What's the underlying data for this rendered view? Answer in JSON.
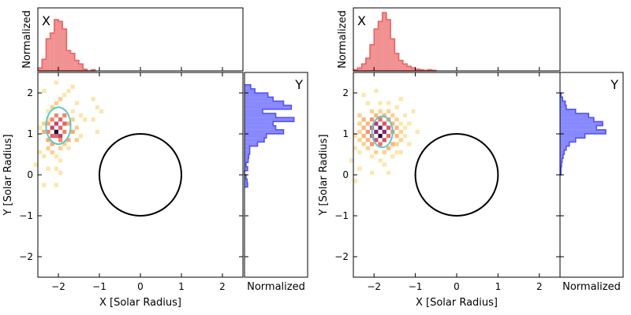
{
  "chart_data": [
    {
      "type": "heatmap",
      "panel": "left",
      "xlabel": "X [Solar Radius]",
      "ylabel": "Y [Solar Radius]",
      "xlim": [
        -2.5,
        2.5
      ],
      "ylim": [
        -2.5,
        2.5
      ],
      "xticks": [
        -2,
        -1,
        0,
        1,
        2
      ],
      "yticks": [
        -2,
        -1,
        0,
        1,
        2
      ],
      "xtick_labels": [
        "−2",
        "−1",
        "0",
        "1",
        "2"
      ],
      "ytick_labels": [
        "−2",
        "−1",
        "0",
        "1",
        "2"
      ],
      "sun_circle": {
        "cx": 0,
        "cy": 0,
        "r": 1
      },
      "ellipse": {
        "cx": -2.0,
        "cy": 1.2,
        "rx": 0.3,
        "ry": 0.45,
        "color": "#5cc8c8"
      },
      "cells": [
        [
          -2.45,
          0.55,
          1
        ],
        [
          -2.35,
          0.45,
          1
        ],
        [
          -2.25,
          1.35,
          1
        ],
        [
          -2.25,
          1.55,
          1
        ],
        [
          -2.15,
          1.65,
          2
        ],
        [
          -2.05,
          1.75,
          2
        ],
        [
          -1.95,
          1.85,
          2
        ],
        [
          -1.85,
          1.95,
          1
        ],
        [
          -1.75,
          2.05,
          1
        ],
        [
          -1.65,
          2.15,
          1
        ],
        [
          -2.35,
          2.05,
          1
        ],
        [
          -2.05,
          2.25,
          1
        ],
        [
          -1.55,
          1.75,
          1
        ],
        [
          -1.45,
          1.45,
          1
        ],
        [
          -1.35,
          1.35,
          1
        ],
        [
          -1.15,
          1.35,
          1
        ],
        [
          -1.05,
          1.65,
          1
        ],
        [
          -1.15,
          1.85,
          1
        ],
        [
          -2.55,
          0.25,
          1
        ],
        [
          -2.15,
          0.55,
          2
        ],
        [
          -2.05,
          0.45,
          1
        ],
        [
          -1.95,
          0.35,
          1
        ],
        [
          -1.75,
          0.65,
          1
        ],
        [
          -1.55,
          0.85,
          2
        ],
        [
          -2.25,
          0.15,
          1
        ],
        [
          -2.05,
          0.15,
          1
        ],
        [
          -2.35,
          -0.25,
          1
        ],
        [
          -2.05,
          -0.25,
          1
        ],
        [
          -1.95,
          0.05,
          1
        ],
        [
          -1.05,
          1.05,
          1
        ],
        [
          -0.95,
          1.55,
          1
        ],
        [
          -2.35,
          1.05,
          3
        ],
        [
          -2.25,
          0.85,
          3
        ],
        [
          -2.15,
          0.95,
          5
        ],
        [
          -2.15,
          1.15,
          6
        ],
        [
          -2.05,
          1.05,
          6
        ],
        [
          -2.05,
          0.95,
          5
        ],
        [
          -1.95,
          1.15,
          5
        ],
        [
          -1.95,
          0.85,
          4
        ],
        [
          -1.85,
          1.05,
          4
        ],
        [
          -1.75,
          1.25,
          3
        ],
        [
          -1.65,
          1.05,
          3
        ],
        [
          -1.75,
          0.85,
          3
        ],
        [
          -2.25,
          1.25,
          3
        ],
        [
          -2.15,
          1.35,
          4
        ],
        [
          -2.05,
          1.45,
          4
        ],
        [
          -1.95,
          1.35,
          5
        ],
        [
          -1.85,
          1.45,
          4
        ],
        [
          -2.05,
          1.25,
          6
        ],
        [
          -1.85,
          1.25,
          5
        ],
        [
          -2.25,
          1.05,
          4
        ],
        [
          -2.05,
          1.05,
          9
        ],
        [
          -1.95,
          0.95,
          6
        ],
        [
          -2.15,
          0.75,
          3
        ],
        [
          -1.85,
          0.75,
          2
        ],
        [
          -1.65,
          1.35,
          2
        ],
        [
          -1.65,
          1.55,
          1
        ],
        [
          -2.35,
          1.25,
          2
        ],
        [
          -2.45,
          1.15,
          1
        ],
        [
          -1.55,
          1.15,
          2
        ],
        [
          -1.45,
          0.95,
          1
        ],
        [
          -2.25,
          0.65,
          2
        ],
        [
          -1.95,
          0.65,
          2
        ]
      ],
      "cell_size": 0.1,
      "colormap": "magma_r"
    },
    {
      "type": "bar",
      "panel": "left-top-histogram",
      "orientation": "vertical",
      "label": "X",
      "ylabel": "Normalized",
      "xlim": [
        -2.5,
        2.5
      ],
      "bin_width": 0.1,
      "bins_x": [
        -2.5,
        -2.4,
        -2.3,
        -2.2,
        -2.1,
        -2.0,
        -1.9,
        -1.8,
        -1.7,
        -1.6,
        -1.5,
        -1.4,
        -1.3,
        -1.2
      ],
      "values": [
        0.05,
        0.2,
        0.55,
        0.65,
        0.88,
        0.85,
        0.72,
        0.35,
        0.3,
        0.18,
        0.12,
        0.03,
        0.0,
        0.02
      ],
      "color": "#e8484a"
    },
    {
      "type": "bar",
      "panel": "left-right-histogram",
      "orientation": "horizontal",
      "label": "Y",
      "xlabel": "Normalized",
      "ylim": [
        -2.5,
        2.5
      ],
      "bin_width": 0.1,
      "bins_y": [
        2.1,
        2.0,
        1.9,
        1.8,
        1.7,
        1.6,
        1.5,
        1.4,
        1.3,
        1.2,
        1.1,
        1.0,
        0.9,
        0.8,
        0.7,
        0.6,
        0.5,
        0.4,
        0.3,
        0.2,
        0.1,
        0.0,
        -0.1,
        -0.2,
        -0.3
      ],
      "values": [
        0.12,
        0.2,
        0.45,
        0.55,
        0.75,
        0.9,
        0.35,
        0.6,
        0.95,
        0.55,
        0.6,
        0.75,
        0.42,
        0.38,
        0.25,
        0.1,
        0.1,
        0.08,
        0.07,
        0.03,
        0.06,
        0.0,
        0.03,
        0.05,
        0.06
      ],
      "color": "#3b3bff"
    },
    {
      "type": "heatmap",
      "panel": "right",
      "xlabel": "X [Solar Radius]",
      "ylabel": "Y [Solar Radius]",
      "xlim": [
        -2.5,
        2.5
      ],
      "ylim": [
        -2.5,
        2.5
      ],
      "xticks": [
        -2,
        -1,
        0,
        1,
        2
      ],
      "yticks": [
        -2,
        -1,
        0,
        1,
        2
      ],
      "xtick_labels": [
        "−2",
        "−1",
        "0",
        "1",
        "2"
      ],
      "ytick_labels": [
        "−2",
        "−1",
        "0",
        "1",
        "2"
      ],
      "sun_circle": {
        "cx": 0,
        "cy": 0,
        "r": 1
      },
      "ellipse": {
        "cx": -1.8,
        "cy": 1.05,
        "rx": 0.25,
        "ry": 0.38,
        "color": "#5cc8c8"
      },
      "cells": [
        [
          -2.15,
          1.05,
          4
        ],
        [
          -2.05,
          1.15,
          6
        ],
        [
          -2.05,
          0.95,
          6
        ],
        [
          -1.95,
          1.05,
          8
        ],
        [
          -1.95,
          1.25,
          7
        ],
        [
          -1.85,
          1.15,
          9
        ],
        [
          -1.85,
          0.95,
          10
        ],
        [
          -1.75,
          1.05,
          8
        ],
        [
          -1.75,
          1.25,
          6
        ],
        [
          -1.65,
          1.15,
          6
        ],
        [
          -1.65,
          0.95,
          5
        ],
        [
          -1.75,
          0.85,
          6
        ],
        [
          -1.95,
          0.85,
          6
        ],
        [
          -1.85,
          0.75,
          5
        ],
        [
          -2.05,
          0.75,
          4
        ],
        [
          -1.85,
          1.35,
          5
        ],
        [
          -2.05,
          1.35,
          4
        ],
        [
          -1.65,
          1.35,
          4
        ],
        [
          -1.55,
          1.05,
          4
        ],
        [
          -1.55,
          1.25,
          3
        ],
        [
          -2.25,
          1.15,
          3
        ],
        [
          -2.25,
          0.95,
          3
        ],
        [
          -2.15,
          1.25,
          3
        ],
        [
          -2.15,
          0.85,
          3
        ],
        [
          -1.45,
          0.95,
          3
        ],
        [
          -1.45,
          1.15,
          3
        ],
        [
          -1.55,
          0.75,
          3
        ],
        [
          -1.65,
          0.65,
          3
        ],
        [
          -1.95,
          1.45,
          3
        ],
        [
          -1.75,
          1.45,
          3
        ],
        [
          -2.35,
          1.05,
          2
        ],
        [
          -2.35,
          0.85,
          2
        ],
        [
          -2.25,
          0.75,
          2
        ],
        [
          -2.15,
          0.65,
          2
        ],
        [
          -1.95,
          0.55,
          2
        ],
        [
          -1.75,
          0.55,
          2
        ],
        [
          -1.45,
          1.35,
          2
        ],
        [
          -1.35,
          1.05,
          2
        ],
        [
          -1.35,
          0.85,
          2
        ],
        [
          -1.45,
          0.75,
          2
        ],
        [
          -1.85,
          1.55,
          2
        ],
        [
          -2.05,
          1.55,
          2
        ],
        [
          -1.65,
          1.55,
          2
        ],
        [
          -2.35,
          1.25,
          2
        ],
        [
          -1.35,
          1.25,
          1
        ],
        [
          -1.25,
          0.95,
          1
        ],
        [
          -1.25,
          1.15,
          1
        ],
        [
          -2.45,
          0.95,
          1
        ],
        [
          -2.45,
          0.65,
          1
        ],
        [
          -2.35,
          0.55,
          1
        ],
        [
          -2.05,
          0.45,
          1
        ],
        [
          -1.85,
          0.35,
          1
        ],
        [
          -1.55,
          0.45,
          1
        ],
        [
          -1.35,
          0.55,
          1
        ],
        [
          -1.85,
          1.75,
          1
        ],
        [
          -1.65,
          1.75,
          1
        ],
        [
          -2.15,
          1.75,
          1
        ],
        [
          -1.45,
          1.65,
          1
        ],
        [
          -1.25,
          1.45,
          1
        ],
        [
          -1.15,
          1.25,
          1
        ],
        [
          -2.55,
          0.35,
          1
        ],
        [
          -2.35,
          0.15,
          1
        ],
        [
          -2.05,
          0.05,
          1
        ],
        [
          -1.75,
          0.25,
          1
        ],
        [
          -1.65,
          0.05,
          1
        ],
        [
          -1.15,
          0.75,
          1
        ],
        [
          -0.95,
          1.05,
          1
        ],
        [
          -1.05,
          1.55,
          1
        ],
        [
          -1.35,
          1.85,
          1
        ],
        [
          -2.45,
          -0.15,
          1
        ],
        [
          -2.25,
          1.95,
          1
        ],
        [
          -1.95,
          2.05,
          1
        ],
        [
          -2.35,
          1.45,
          2
        ],
        [
          -2.25,
          1.35,
          3
        ],
        [
          -1.55,
          1.45,
          2
        ],
        [
          -1.45,
          0.55,
          1
        ]
      ],
      "cell_size": 0.1,
      "colormap": "magma_r"
    },
    {
      "type": "bar",
      "panel": "right-top-histogram",
      "orientation": "vertical",
      "label": "X",
      "ylabel": "Normalized",
      "xlim": [
        -2.5,
        2.5
      ],
      "bin_width": 0.1,
      "bins_x": [
        -2.5,
        -2.4,
        -2.3,
        -2.2,
        -2.1,
        -2.0,
        -1.9,
        -1.8,
        -1.7,
        -1.6,
        -1.5,
        -1.4,
        -1.3,
        -1.2,
        -1.1,
        -1.0,
        -0.9,
        -0.8,
        -0.7,
        -0.6
      ],
      "values": [
        0.02,
        0.05,
        0.12,
        0.22,
        0.45,
        0.72,
        0.85,
        1.0,
        0.88,
        0.55,
        0.3,
        0.18,
        0.12,
        0.08,
        0.05,
        0.03,
        0.02,
        0.01,
        0.02,
        0.01
      ],
      "color": "#e8484a"
    },
    {
      "type": "bar",
      "panel": "right-right-histogram",
      "orientation": "horizontal",
      "label": "Y",
      "xlabel": "Normalized",
      "ylim": [
        -2.5,
        2.5
      ],
      "bin_width": 0.1,
      "bins_y": [
        1.9,
        1.8,
        1.7,
        1.6,
        1.5,
        1.4,
        1.3,
        1.2,
        1.1,
        1.0,
        0.9,
        0.8,
        0.7,
        0.6,
        0.5,
        0.4,
        0.3,
        0.2,
        0.1,
        0.0
      ],
      "values": [
        0.02,
        0.05,
        0.1,
        0.12,
        0.3,
        0.55,
        0.65,
        0.82,
        0.7,
        0.88,
        0.48,
        0.3,
        0.18,
        0.12,
        0.08,
        0.06,
        0.04,
        0.03,
        0.02,
        0.02
      ],
      "color": "#3b3bff"
    }
  ]
}
